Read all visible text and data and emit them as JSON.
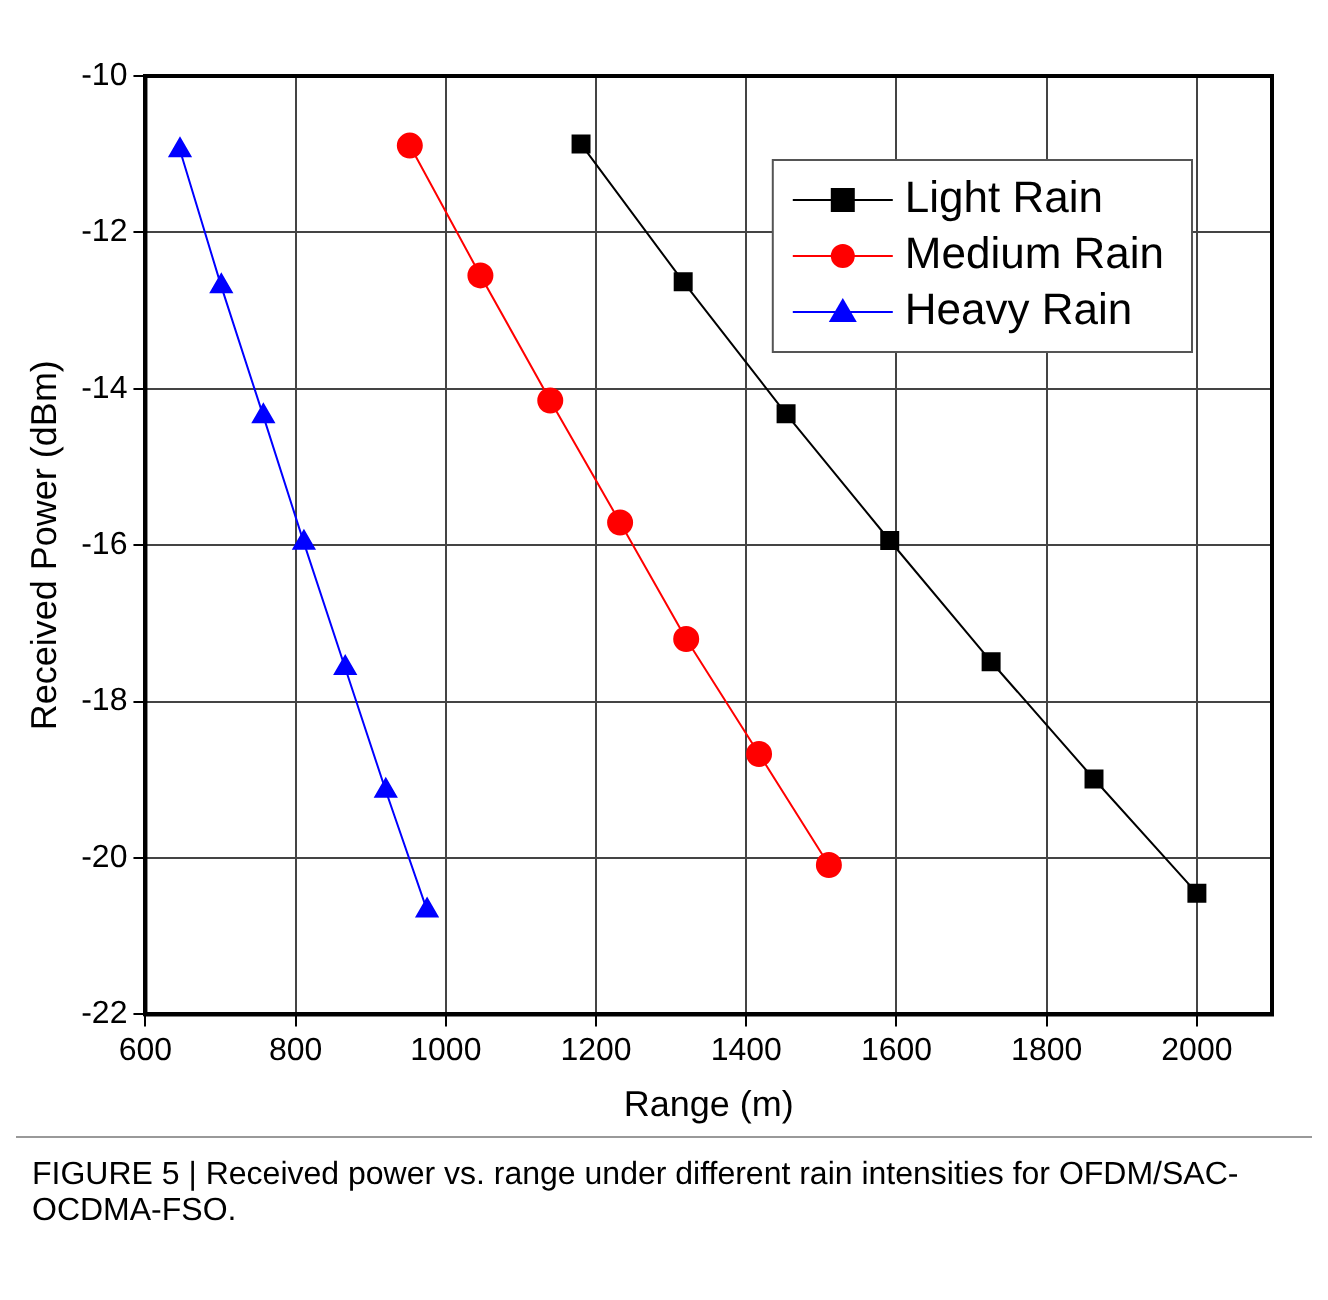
{
  "chart_data": {
    "type": "line",
    "xlabel": "Range (m)",
    "ylabel": "Received Power (dBm)",
    "xlim": [
      600,
      2100
    ],
    "xticks": [
      600,
      800,
      1000,
      1200,
      1400,
      1600,
      1800,
      2000
    ],
    "ylim": [
      -22,
      -10
    ],
    "yticks": [
      -22,
      -20,
      -18,
      -16,
      -14,
      -12,
      -10
    ],
    "grid": true,
    "legend": "top right",
    "line_style": "solid",
    "series": [
      {
        "name": "Light Rain",
        "color": "#000000",
        "marker": "square",
        "x": [
          1180,
          1316,
          1453,
          1591,
          1726,
          1863,
          2000
        ],
        "values": [
          -10.87,
          -12.63,
          -14.32,
          -15.94,
          -17.49,
          -18.99,
          -20.45
        ]
      },
      {
        "name": "Medium Rain",
        "color": "#ff0000",
        "marker": "circle",
        "x": [
          952,
          1046,
          1139,
          1232,
          1320,
          1417,
          1510
        ],
        "values": [
          -10.89,
          -12.55,
          -14.15,
          -15.71,
          -17.2,
          -18.67,
          -20.09
        ]
      },
      {
        "name": "Heavy Rain",
        "color": "#0000ff",
        "marker": "triangle",
        "x": [
          646,
          701,
          757,
          811,
          866,
          920,
          975
        ],
        "values": [
          -10.95,
          -12.69,
          -14.35,
          -15.97,
          -17.57,
          -19.14,
          -20.67
        ]
      }
    ],
    "annotations": [
      "FIGURE 5 | Received power vs. range under different rain intensities for OFDM/SAC-OCDMA-FSO."
    ]
  }
}
